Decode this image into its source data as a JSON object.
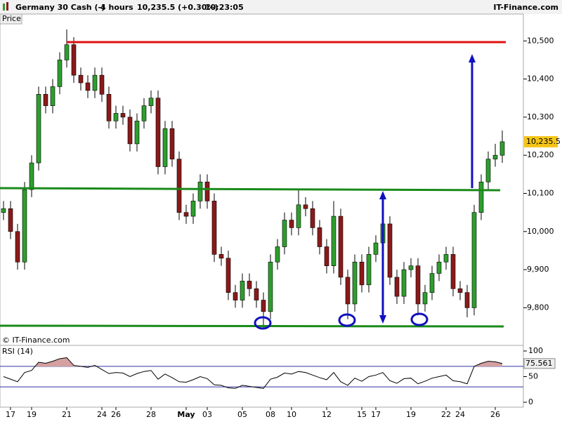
{
  "header": {
    "instrument": "Germany 30 Cash (-)",
    "period": "4 hours",
    "quote": "10,235.5 (+0.30%)",
    "time": "10:23:05",
    "site": "IT-Finance.com"
  },
  "chart_data": {
    "type": "candlestick",
    "panel_label": "Price",
    "watermark": "© IT-Finance.com",
    "up_color": "#2e9e2e",
    "down_color": "#8b1a1a",
    "categories": [
      null,
      "17",
      null,
      null,
      "19",
      null,
      null,
      null,
      null,
      "21",
      null,
      null,
      null,
      null,
      "24",
      null,
      "26",
      null,
      null,
      null,
      null,
      "28",
      null,
      null,
      null,
      null,
      "May",
      null,
      null,
      "03",
      null,
      null,
      null,
      null,
      "05",
      null,
      null,
      null,
      "08",
      null,
      null,
      "10",
      null,
      null,
      null,
      null,
      "12",
      null,
      null,
      null,
      null,
      "15",
      null,
      "17",
      null,
      null,
      null,
      null,
      "19",
      null,
      null,
      null,
      null,
      "22",
      null,
      "24",
      null,
      null,
      null,
      null,
      "26",
      null
    ],
    "candles": [
      [
        10050,
        10080,
        10030,
        10060
      ],
      [
        10060,
        10080,
        9980,
        10000
      ],
      [
        10000,
        10020,
        9900,
        9920
      ],
      [
        9920,
        10130,
        9900,
        10110
      ],
      [
        10110,
        10200,
        10090,
        10180
      ],
      [
        10180,
        10380,
        10160,
        10360
      ],
      [
        10360,
        10380,
        10310,
        10330
      ],
      [
        10330,
        10400,
        10310,
        10380
      ],
      [
        10380,
        10470,
        10360,
        10450
      ],
      [
        10450,
        10530,
        10430,
        10490
      ],
      [
        10490,
        10510,
        10390,
        10410
      ],
      [
        10410,
        10430,
        10370,
        10390
      ],
      [
        10390,
        10410,
        10350,
        10370
      ],
      [
        10370,
        10430,
        10350,
        10410
      ],
      [
        10410,
        10430,
        10340,
        10360
      ],
      [
        10360,
        10380,
        10270,
        10290
      ],
      [
        10290,
        10330,
        10270,
        10310
      ],
      [
        10310,
        10330,
        10280,
        10300
      ],
      [
        10300,
        10320,
        10210,
        10230
      ],
      [
        10230,
        10310,
        10210,
        10290
      ],
      [
        10290,
        10350,
        10270,
        10330
      ],
      [
        10330,
        10370,
        10310,
        10350
      ],
      [
        10350,
        10370,
        10150,
        10170
      ],
      [
        10170,
        10290,
        10150,
        10270
      ],
      [
        10270,
        10290,
        10170,
        10190
      ],
      [
        10190,
        10210,
        10030,
        10050
      ],
      [
        10050,
        10070,
        10020,
        10040
      ],
      [
        10040,
        10100,
        10020,
        10080
      ],
      [
        10080,
        10150,
        10060,
        10130
      ],
      [
        10130,
        10150,
        10060,
        10080
      ],
      [
        10080,
        10100,
        9920,
        9940
      ],
      [
        9940,
        9960,
        9910,
        9930
      ],
      [
        9930,
        9950,
        9820,
        9840
      ],
      [
        9840,
        9860,
        9800,
        9820
      ],
      [
        9820,
        9890,
        9800,
        9870
      ],
      [
        9870,
        9890,
        9830,
        9850
      ],
      [
        9850,
        9870,
        9800,
        9820
      ],
      [
        9820,
        9840,
        9745,
        9790
      ],
      [
        9790,
        9940,
        9770,
        9920
      ],
      [
        9920,
        9980,
        9900,
        9960
      ],
      [
        9960,
        10050,
        9940,
        10030
      ],
      [
        10030,
        10050,
        9990,
        10010
      ],
      [
        10010,
        10110,
        9990,
        10070
      ],
      [
        10070,
        10090,
        10040,
        10060
      ],
      [
        10060,
        10080,
        9990,
        10010
      ],
      [
        10010,
        10030,
        9940,
        9960
      ],
      [
        9960,
        9980,
        9890,
        9910
      ],
      [
        9910,
        10080,
        9890,
        10040
      ],
      [
        10040,
        10060,
        9860,
        9880
      ],
      [
        9880,
        9900,
        9770,
        9810
      ],
      [
        9810,
        9940,
        9790,
        9920
      ],
      [
        9920,
        9940,
        9840,
        9860
      ],
      [
        9860,
        9960,
        9840,
        9940
      ],
      [
        9940,
        9990,
        9920,
        9970
      ],
      [
        9970,
        10040,
        9950,
        10020
      ],
      [
        10020,
        10040,
        9860,
        9880
      ],
      [
        9880,
        9900,
        9810,
        9830
      ],
      [
        9830,
        9920,
        9810,
        9900
      ],
      [
        9900,
        9930,
        9880,
        9910
      ],
      [
        9910,
        9930,
        9780,
        9810
      ],
      [
        9810,
        9860,
        9790,
        9840
      ],
      [
        9840,
        9910,
        9820,
        9890
      ],
      [
        9890,
        9940,
        9870,
        9920
      ],
      [
        9920,
        9960,
        9900,
        9940
      ],
      [
        9940,
        9960,
        9830,
        9850
      ],
      [
        9850,
        9870,
        9820,
        9840
      ],
      [
        9840,
        9860,
        9775,
        9800
      ],
      [
        9800,
        10070,
        9780,
        10050
      ],
      [
        10050,
        10150,
        10030,
        10130
      ],
      [
        10130,
        10210,
        10110,
        10190
      ],
      [
        10190,
        10230,
        10170,
        10200
      ],
      [
        10200,
        10265,
        10180,
        10235.5
      ]
    ],
    "ylim": [
      9705,
      10541
    ],
    "yticks": [
      {
        "value": 9800,
        "label": "9,800"
      },
      {
        "value": 9900,
        "label": "9,900"
      },
      {
        "value": 10000,
        "label": "10,000"
      },
      {
        "value": 10100,
        "label": "10,100"
      },
      {
        "value": 10200,
        "label": "10,200"
      },
      {
        "value": 10300,
        "label": "10,300"
      },
      {
        "value": 10400,
        "label": "10,400"
      },
      {
        "value": 10500,
        "label": "10,500"
      }
    ],
    "current": {
      "value": 10235.5,
      "label": "10,235.5",
      "color": "#f5c518"
    },
    "indicator": {
      "type": "line",
      "title": "RSI (14)",
      "color": "#000000",
      "fill_color": "#d4a0a0",
      "level_color": "#3030a0",
      "values": [
        50,
        45,
        40,
        58,
        62,
        78,
        76,
        80,
        85,
        87,
        72,
        70,
        68,
        72,
        64,
        56,
        58,
        57,
        50,
        56,
        60,
        62,
        45,
        55,
        48,
        40,
        39,
        44,
        50,
        46,
        34,
        33,
        28,
        27,
        33,
        31,
        29,
        27,
        45,
        49,
        57,
        55,
        60,
        58,
        53,
        48,
        44,
        58,
        40,
        33,
        47,
        41,
        50,
        53,
        58,
        42,
        37,
        46,
        47,
        36,
        41,
        47,
        50,
        53,
        42,
        40,
        36,
        70,
        76,
        80,
        79,
        75.561
      ],
      "ylim": [
        0,
        100
      ],
      "yticks": [
        0,
        50,
        100
      ],
      "levels": [
        30,
        70
      ],
      "current": {
        "value": 75.561,
        "label": "75.561"
      }
    }
  }
}
